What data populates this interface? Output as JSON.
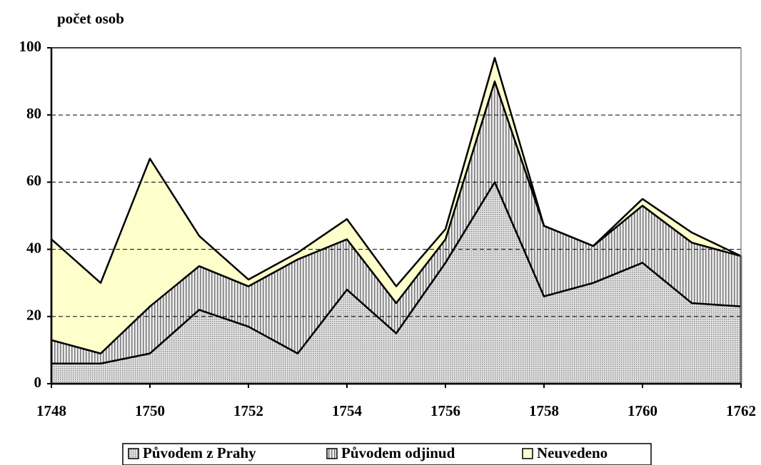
{
  "chart_data": {
    "type": "area",
    "stacked": true,
    "y_label": "počet osob",
    "x": [
      1748,
      1749,
      1750,
      1751,
      1752,
      1753,
      1754,
      1755,
      1756,
      1757,
      1758,
      1759,
      1760,
      1761,
      1762
    ],
    "xlim": [
      1748,
      1762
    ],
    "xticks": [
      1748,
      1750,
      1752,
      1754,
      1756,
      1758,
      1760,
      1762
    ],
    "ylim": [
      0,
      100
    ],
    "yticks": [
      0,
      20,
      40,
      60,
      80,
      100
    ],
    "grid": true,
    "series": [
      {
        "name": "Původem z Prahy",
        "color": "#c8c8c8",
        "values": [
          6,
          6,
          9,
          22,
          17,
          9,
          28,
          15,
          36,
          60,
          26,
          30,
          36,
          24,
          23
        ]
      },
      {
        "name": "Původem odjinud",
        "color": "#b4b4b4",
        "values": [
          7,
          3,
          14,
          13,
          12,
          28,
          15,
          9,
          7,
          30,
          21,
          11,
          17,
          18,
          15
        ]
      },
      {
        "name": "Neuvedeno",
        "color": "#ffffcc",
        "values": [
          30,
          21,
          44,
          9,
          2,
          2,
          6,
          5,
          3,
          7,
          0,
          0,
          2,
          3,
          0
        ]
      }
    ]
  }
}
